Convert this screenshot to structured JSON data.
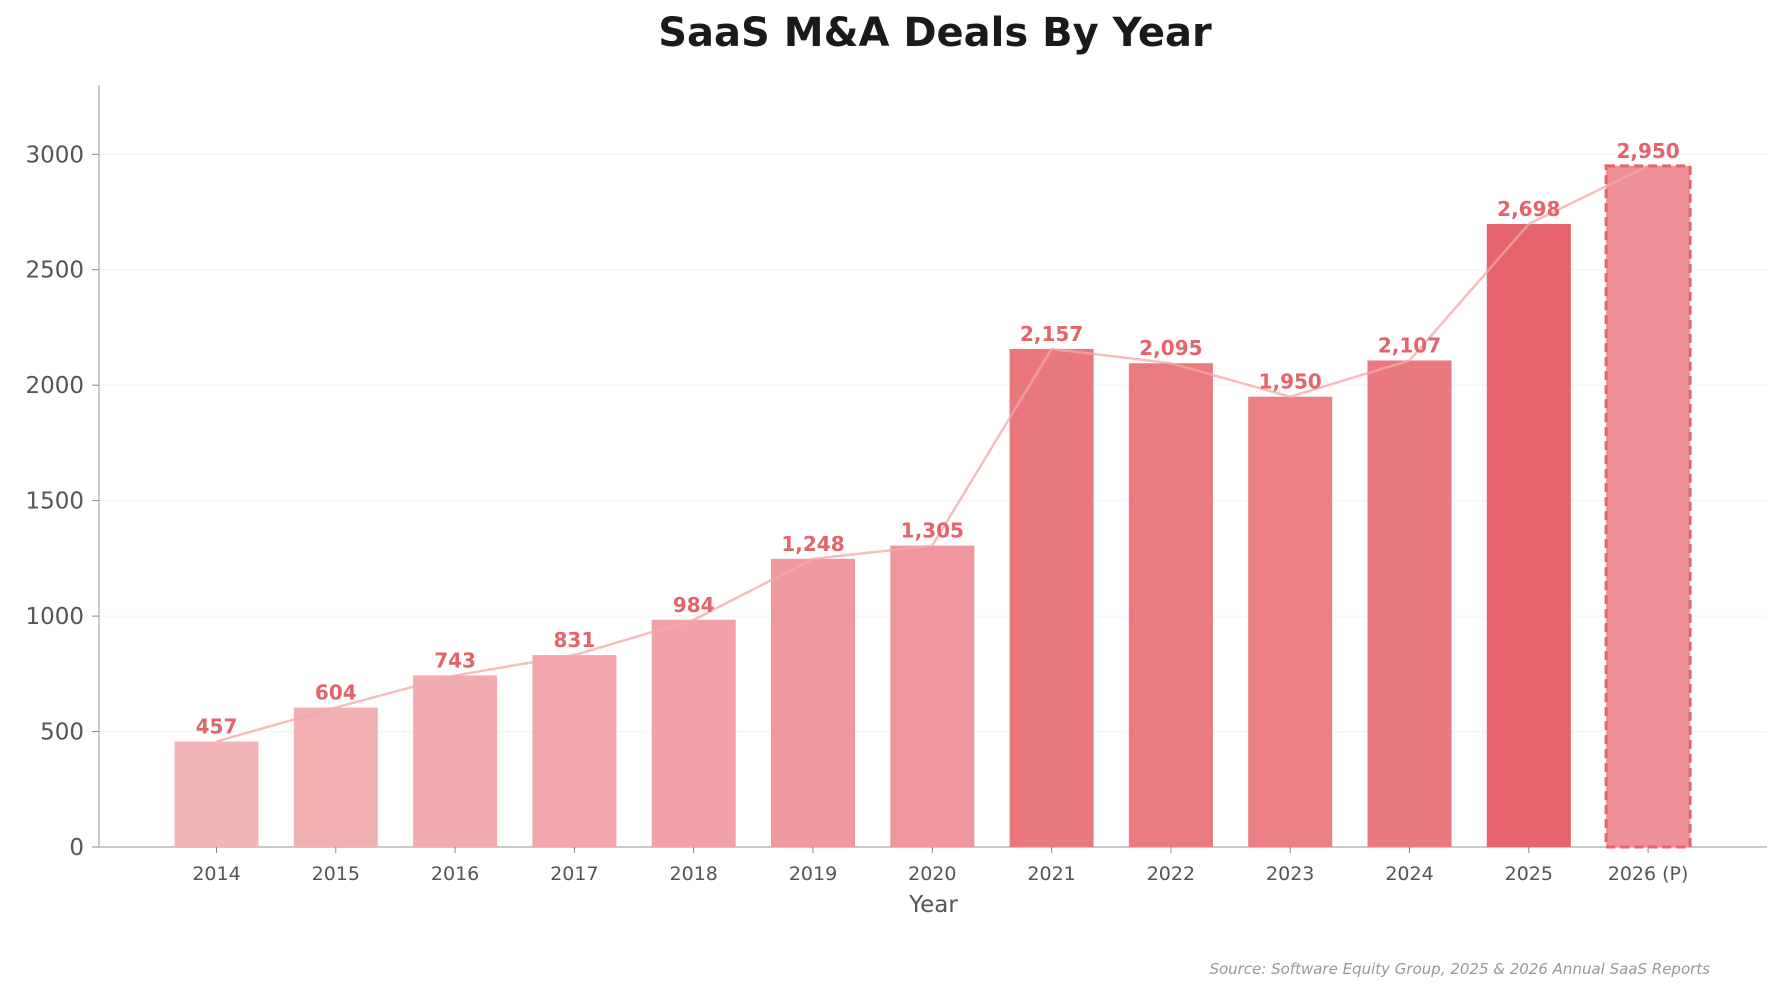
{
  "chart_data": {
    "type": "bar",
    "title": "SaaS M&A Deals By Year",
    "xlabel": "Year",
    "ylabel": "",
    "categories": [
      "2014",
      "2015",
      "2016",
      "2017",
      "2018",
      "2019",
      "2020",
      "2021",
      "2022",
      "2023",
      "2024",
      "2025",
      "2026 (P)"
    ],
    "values": [
      457,
      604,
      743,
      831,
      984,
      1248,
      1305,
      2157,
      2095,
      1950,
      2107,
      2698,
      2950
    ],
    "value_labels": [
      "457",
      "604",
      "743",
      "831",
      "984",
      "1,248",
      "1,305",
      "2,157",
      "2,095",
      "1,950",
      "2,107",
      "2,698",
      "2,950"
    ],
    "projected": [
      false,
      false,
      false,
      false,
      false,
      false,
      false,
      false,
      false,
      false,
      false,
      false,
      true
    ],
    "yticks": [
      0,
      500,
      1000,
      1500,
      2000,
      2500,
      3000
    ],
    "ylim": [
      0,
      3300
    ],
    "trend_line": true,
    "grid": "horizontal, faint",
    "legend": "none",
    "colors": {
      "bar_light": "#f4b5b8",
      "bar_dark": "#e5646b",
      "label": "#e5646b",
      "trend": "#f4a8a8"
    }
  },
  "source_note": "Source: Software Equity Group, 2025 & 2026 Annual SaaS Reports"
}
